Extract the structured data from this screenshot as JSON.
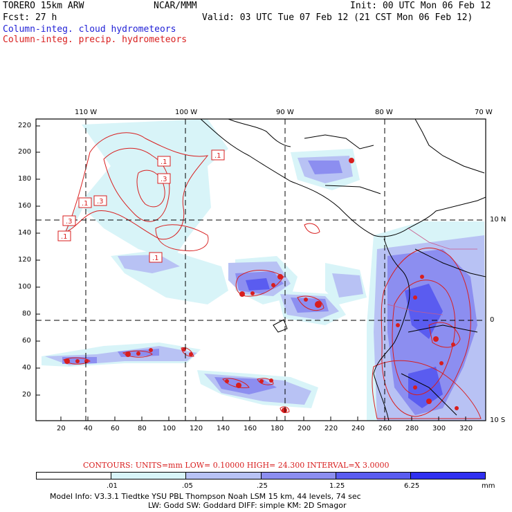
{
  "header": {
    "model": "TORERO  15km ARW",
    "org": "NCAR/MMM",
    "init": "Init: 00 UTC Mon 06 Feb 12",
    "fcst": "Fcst:   27 h",
    "valid": "Valid: 03 UTC Tue 07 Feb 12 (21 CST Mon 06 Feb 12)",
    "line_cloud": "Column-integ. cloud hydrometeors",
    "line_precip": "Column-integ. precip. hydrometeors"
  },
  "map": {
    "lon_labels": [
      "110 W",
      "100 W",
      "90 W",
      "80 W",
      "70 W"
    ],
    "lat_labels": [
      "10 N",
      "0",
      "10 S"
    ],
    "y_ticks": [
      "220",
      "200",
      "180",
      "160",
      "140",
      "120",
      "100",
      "80",
      "60",
      "40",
      "20"
    ],
    "x_ticks": [
      "20",
      "40",
      "60",
      "80",
      "100",
      "120",
      "140",
      "160",
      "180",
      "200",
      "220",
      "240",
      "260",
      "280",
      "300",
      "320"
    ],
    "contour_labels": [
      ".1",
      ".1",
      ".3",
      ".1",
      ".3",
      ".3",
      ".1",
      ".1"
    ]
  },
  "contours_info": "CONTOURS:  UNITS=mm  LOW= 0.10000      HIGH=  24.300      INTERVAL=X  3.0000",
  "legend": {
    "colors": [
      "#ffffff",
      "#d8f4f8",
      "#b8c2f4",
      "#8c8ef0",
      "#5a5cf0",
      "#3030f0"
    ],
    "levels": [
      ".01",
      ".05",
      ".25",
      "1.25",
      "6.25"
    ],
    "unit": "mm"
  },
  "footer": {
    "line1": "Model Info: V3.3.1    Tiedtke YSU PBL  Thompson    Noah LSM  15 km,   44 levels,   74 sec",
    "line2": "LW: Godd SW: Goddard DIFF: simple KM: 2D Smagor"
  },
  "colors": {
    "cloud_text": "#1f1fd6",
    "precip_text": "#d81e1e"
  }
}
